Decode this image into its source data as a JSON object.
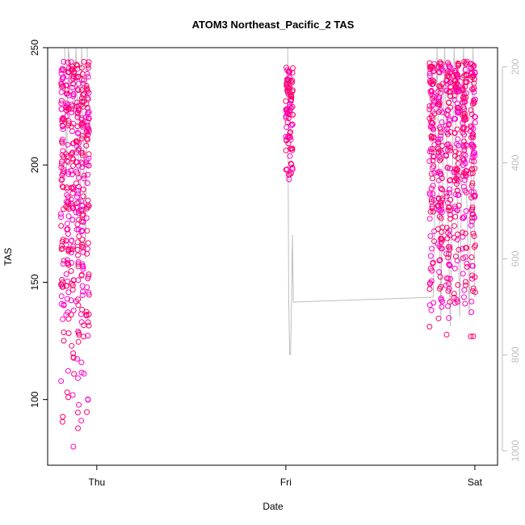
{
  "chart_data": {
    "type": "scatter",
    "title": "ATOM3 Northeast_Pacific_2 TAS",
    "xlabel": "Date",
    "ylabel": "TAS",
    "x_ticks": [
      {
        "label": "Thu",
        "day": 0
      },
      {
        "label": "Fri",
        "day": 1
      },
      {
        "label": "Sat",
        "day": 2
      }
    ],
    "x_range_days": [
      -0.26,
      2.12
    ],
    "y_ticks": [
      100,
      150,
      200,
      250
    ],
    "ylim": [
      72,
      250
    ],
    "y2_ticks": [
      200,
      400,
      600,
      800,
      1000
    ],
    "y2_range": [
      1030,
      160
    ],
    "colors": {
      "points_a": "#ff00cc",
      "points_b": "#ff0066",
      "pressure_line": "#bebebe",
      "axis": "#000000",
      "axis_right": "#bebebe"
    },
    "clusters": [
      {
        "day_start": -0.19,
        "day_end": -0.03,
        "y_min": 79,
        "y_max": 244,
        "n": 420,
        "seed": 3
      },
      {
        "day_start": 1.0,
        "day_end": 1.04,
        "y_min": 190,
        "y_max": 242,
        "n": 90,
        "seed": 7
      },
      {
        "day_start": 1.76,
        "day_end": 2.02,
        "y_min": 122,
        "y_max": 244,
        "n": 560,
        "seed": 11
      }
    ],
    "pressure_series": [
      {
        "day": -0.17,
        "p": 160
      },
      {
        "day": -0.16,
        "p": 420
      },
      {
        "day": -0.15,
        "p": 160
      },
      {
        "day": -0.12,
        "p": 300
      },
      {
        "day": -0.11,
        "p": 160
      },
      {
        "day": -0.09,
        "p": 520
      },
      {
        "day": -0.08,
        "p": 160
      },
      {
        "day": -0.06,
        "p": 600
      },
      {
        "day": -0.05,
        "p": 160
      },
      {
        "day": -0.02,
        "p": 160
      },
      {
        "day": 1.01,
        "p": 160
      },
      {
        "day": 1.015,
        "p": 680
      },
      {
        "day": 1.02,
        "p": 800
      },
      {
        "day": 1.025,
        "p": 800
      },
      {
        "day": 1.03,
        "p": 690
      },
      {
        "day": 1.035,
        "p": 550
      },
      {
        "day": 1.04,
        "p": 690
      },
      {
        "day": 1.78,
        "p": 680
      },
      {
        "day": 1.8,
        "p": 160
      },
      {
        "day": 1.82,
        "p": 720
      },
      {
        "day": 1.84,
        "p": 160
      },
      {
        "day": 1.87,
        "p": 740
      },
      {
        "day": 1.89,
        "p": 160
      },
      {
        "day": 1.92,
        "p": 720
      },
      {
        "day": 1.94,
        "p": 160
      },
      {
        "day": 1.97,
        "p": 720
      },
      {
        "day": 1.99,
        "p": 160
      },
      {
        "day": 2.0,
        "p": 680
      }
    ]
  }
}
